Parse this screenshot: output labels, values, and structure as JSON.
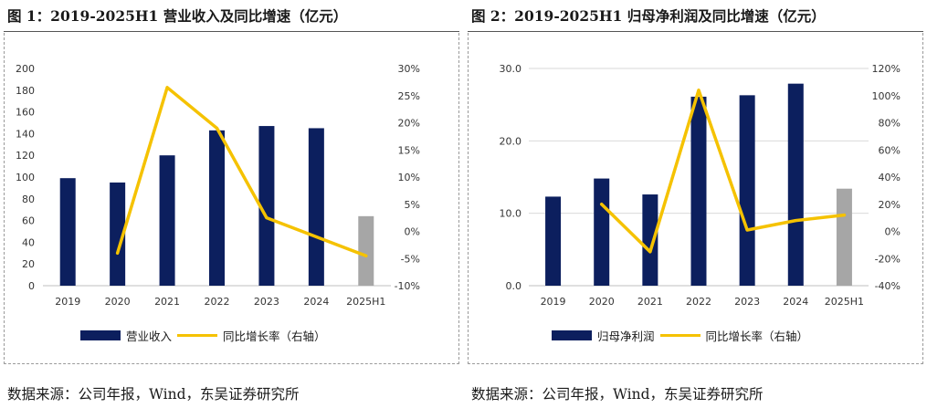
{
  "left": {
    "title": "图 1：2019-2025H1 营业收入及同比增速（亿元）",
    "source": "数据来源：公司年报，Wind，东吴证券研究所",
    "legend_bar": "营业收入",
    "legend_line": "同比增长率（右轴）"
  },
  "right": {
    "title": "图 2：2019-2025H1 归母净利润及同比增速（亿元）",
    "source": "数据来源：公司年报，Wind，东吴证券研究所",
    "legend_bar": "归母净利润",
    "legend_line": "同比增长率（右轴）"
  },
  "colors": {
    "bar": "#0c1f5e",
    "bar_partial": "#a6a6a6",
    "line": "#f5c200",
    "grid": "#d9d9d9"
  },
  "chart_data": [
    {
      "type": "bar",
      "title": "图 1：2019-2025H1 营业收入及同比增速（亿元）",
      "categories": [
        "2019",
        "2020",
        "2021",
        "2022",
        "2023",
        "2024",
        "2025H1"
      ],
      "series": [
        {
          "name": "营业收入",
          "type": "bar",
          "axis": "left",
          "values": [
            99,
            95,
            120,
            143,
            147,
            145,
            64
          ]
        },
        {
          "name": "同比增长率（右轴）",
          "type": "line",
          "axis": "right",
          "values": [
            null,
            -4.0,
            26.5,
            19.0,
            2.5,
            -1.0,
            -4.5
          ]
        }
      ],
      "ylim": [
        0,
        200
      ],
      "yticks": [
        0,
        20,
        40,
        60,
        80,
        100,
        120,
        140,
        160,
        180,
        200
      ],
      "ytick_labels": [
        "0",
        "20",
        "40",
        "60",
        "80",
        "100",
        "120",
        "140",
        "160",
        "180",
        "200"
      ],
      "y2lim": [
        -10,
        30
      ],
      "y2ticks": [
        -10,
        -5,
        0,
        5,
        10,
        15,
        20,
        25,
        30
      ],
      "y2tick_labels": [
        "-10%",
        "-5%",
        "0%",
        "5%",
        "10%",
        "15%",
        "20%",
        "25%",
        "30%"
      ],
      "grid": false,
      "legend": "bottom"
    },
    {
      "type": "bar",
      "title": "图 2：2019-2025H1 归母净利润及同比增速（亿元）",
      "categories": [
        "2019",
        "2020",
        "2021",
        "2022",
        "2023",
        "2024",
        "2025H1"
      ],
      "series": [
        {
          "name": "归母净利润",
          "type": "bar",
          "axis": "left",
          "values": [
            12.3,
            14.8,
            12.6,
            26.1,
            26.3,
            27.9,
            13.4
          ]
        },
        {
          "name": "同比增长率（右轴）",
          "type": "line",
          "axis": "right",
          "values": [
            null,
            20,
            -15,
            104,
            1,
            8,
            12
          ]
        }
      ],
      "ylim": [
        0,
        30
      ],
      "yticks": [
        0,
        10,
        20,
        30
      ],
      "ytick_labels": [
        "0.0",
        "10.0",
        "20.0",
        "30.0"
      ],
      "y2lim": [
        -40,
        120
      ],
      "y2ticks": [
        -40,
        -20,
        0,
        20,
        40,
        60,
        80,
        100,
        120
      ],
      "y2tick_labels": [
        "-40%",
        "-20%",
        "0%",
        "20%",
        "40%",
        "60%",
        "80%",
        "100%",
        "120%"
      ],
      "grid": true,
      "legend": "bottom"
    }
  ]
}
